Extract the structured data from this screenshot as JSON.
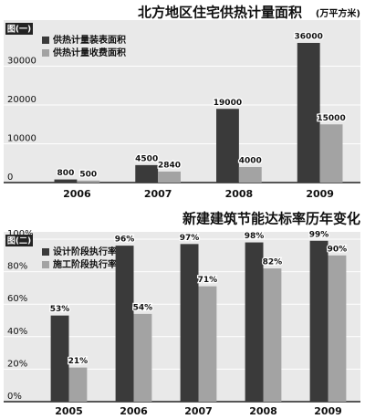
{
  "chart_data": [
    {
      "type": "bar",
      "title": "北方地区住宅供热计量面积",
      "unit": "(万平方米)",
      "label": "图(一)",
      "categories": [
        "2006",
        "2007",
        "2008",
        "2009"
      ],
      "series": [
        {
          "name": "供热计量装表面积",
          "color": "#3a3a3a",
          "values": [
            800,
            4500,
            19000,
            36000
          ]
        },
        {
          "name": "供热计量收费面积",
          "color": "#a3a3a3",
          "values": [
            500,
            2840,
            4000,
            15000
          ]
        }
      ],
      "ylim": [
        0,
        40000
      ],
      "yticks": [
        0,
        10000,
        20000,
        30000
      ],
      "grid": true
    },
    {
      "type": "bar",
      "title": "新建建筑节能达标率历年变化",
      "label": "图(二)",
      "categories": [
        "2005",
        "2006",
        "2007",
        "2008",
        "2009"
      ],
      "series": [
        {
          "name": "设计阶段执行率",
          "color": "#3a3a3a",
          "values": [
            53,
            96,
            97,
            98,
            99
          ],
          "value_labels": [
            "53%",
            "96%",
            "97%",
            "98%",
            "99%"
          ]
        },
        {
          "name": "施工阶段执行率",
          "color": "#a3a3a3",
          "values": [
            21,
            54,
            71,
            82,
            90
          ],
          "value_labels": [
            "21%",
            "54%",
            "71%",
            "82%",
            "90%"
          ]
        }
      ],
      "ylim": [
        0,
        100
      ],
      "yticks": [
        {
          "value": 0,
          "label": "0%"
        },
        {
          "value": 20,
          "label": "20%"
        },
        {
          "value": 40,
          "label": "40%"
        },
        {
          "value": 60,
          "label": "60%"
        },
        {
          "value": 80,
          "label": "80%"
        },
        {
          "value": 100,
          "label": "100%"
        }
      ],
      "grid": true
    }
  ]
}
